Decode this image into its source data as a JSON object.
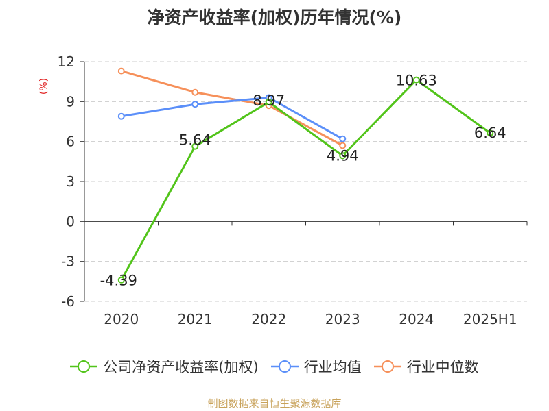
{
  "title": "净资产收益率(加权)历年情况(%)",
  "source": "制图数据来自恒生聚源数据库",
  "colors": {
    "company": "#52c41a",
    "industry_avg": "#5b8ff9",
    "industry_median": "#f6905a",
    "ylabel": "#e02020",
    "grid": "#cccccc",
    "axis": "#333333",
    "source": "#c8a25a"
  },
  "chart_data": {
    "type": "line",
    "title": "净资产收益率(加权)历年情况(%)",
    "ylabel": "(%)",
    "xlabel": "",
    "categories": [
      "2020",
      "2021",
      "2022",
      "2023",
      "2024",
      "2025H1"
    ],
    "ylim": [
      -6,
      12
    ],
    "yticks": [
      -6,
      -3,
      0,
      3,
      6,
      9,
      12
    ],
    "grid": true,
    "legend_position": "bottom",
    "series": [
      {
        "name": "公司净资产收益率(加权)",
        "values": [
          -4.39,
          5.64,
          8.97,
          4.94,
          10.63,
          6.64
        ],
        "labels": [
          "-4.39",
          "5.64",
          "8.97",
          "4.94",
          "10.63",
          "6.64"
        ]
      },
      {
        "name": "行业均值",
        "values": [
          7.9,
          8.8,
          9.3,
          6.2,
          null,
          null
        ]
      },
      {
        "name": "行业中位数",
        "values": [
          11.3,
          9.7,
          8.7,
          5.7,
          null,
          null
        ]
      }
    ]
  }
}
